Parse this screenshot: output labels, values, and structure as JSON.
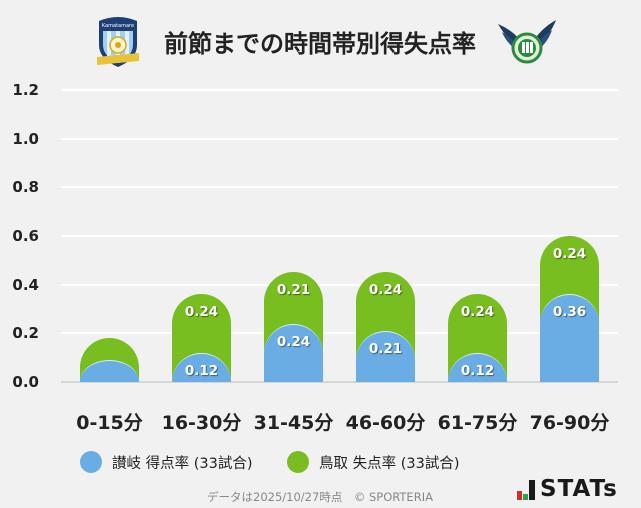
{
  "header": {
    "title": "前節までの時間帯別得失点率",
    "left_logo": "kamatamare-sanuki-crest",
    "right_logo": "gainare-tottori-crest"
  },
  "colors": {
    "background": "#f1f1f1",
    "sanuki_blue": "#6aade4",
    "tottori_green": "#78be20",
    "gridline": "#ffffff",
    "text": "#222222",
    "footer_text": "#888888"
  },
  "legend": {
    "items": [
      {
        "label": "讃岐 得点率 (33試合)",
        "color": "#6aade4"
      },
      {
        "label": "鳥取 失点率 (33試合)",
        "color": "#78be20"
      }
    ]
  },
  "footer": {
    "note": "データは2025/10/27時点　© SPORTERIA",
    "brand": "STATs"
  },
  "chart_data": {
    "type": "bar",
    "stacked": true,
    "title": "前節までの時間帯別得失点率",
    "xlabel": "",
    "ylabel": "",
    "ylim": [
      0,
      1.2
    ],
    "yticks": [
      "0.0",
      "0.2",
      "0.4",
      "0.6",
      "0.8",
      "1.0",
      "1.2"
    ],
    "grid": true,
    "legend_position": "bottom",
    "categories": [
      "0-15分",
      "16-30分",
      "31-45分",
      "46-60分",
      "61-75分",
      "76-90分"
    ],
    "series": [
      {
        "name": "讃岐 得点率 (33試合)",
        "color": "#6aade4",
        "values": [
          0.09,
          0.12,
          0.24,
          0.21,
          0.12,
          0.36
        ],
        "labels": [
          "",
          "0.12",
          "0.24",
          "0.21",
          "0.12",
          "0.36"
        ]
      },
      {
        "name": "鳥取 失点率 (33試合)",
        "color": "#78be20",
        "values": [
          0.09,
          0.24,
          0.21,
          0.24,
          0.24,
          0.24
        ],
        "labels": [
          "",
          "0.24",
          "0.21",
          "0.24",
          "0.24",
          "0.24"
        ]
      }
    ]
  }
}
